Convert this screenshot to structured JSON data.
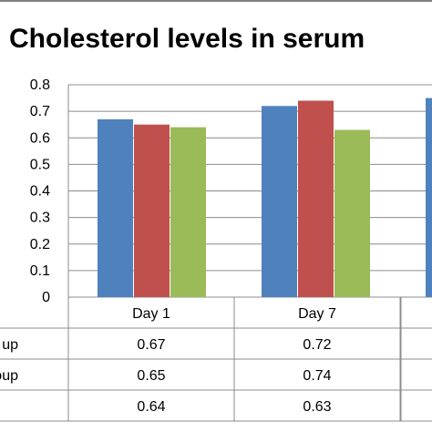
{
  "chart_data": {
    "type": "bar",
    "title": "Cholesterol levels in serum",
    "categories": [
      "Day 1",
      "Day 7",
      ""
    ],
    "series": [
      {
        "name": "up",
        "color": "#4f81bd",
        "values": [
          0.67,
          0.72,
          0.75
        ]
      },
      {
        "name": "s group",
        "color": "#c0504d",
        "values": [
          0.65,
          0.74,
          null
        ]
      },
      {
        "name": "",
        "color": "#9bbb59",
        "values": [
          0.64,
          0.63,
          null
        ]
      }
    ],
    "table_values": [
      [
        "0.67",
        "0.72"
      ],
      [
        "0.65",
        "0.74"
      ],
      [
        "0.64",
        "0.63"
      ]
    ],
    "yticks": [
      "0",
      "0.1",
      "0.2",
      "0.3",
      "0.4",
      "0.5",
      "0.6",
      "0.7",
      "0.8"
    ],
    "ylim": [
      0,
      0.8
    ],
    "xlabel": "",
    "ylabel": "",
    "grid": true,
    "legend": "data table below chart"
  }
}
